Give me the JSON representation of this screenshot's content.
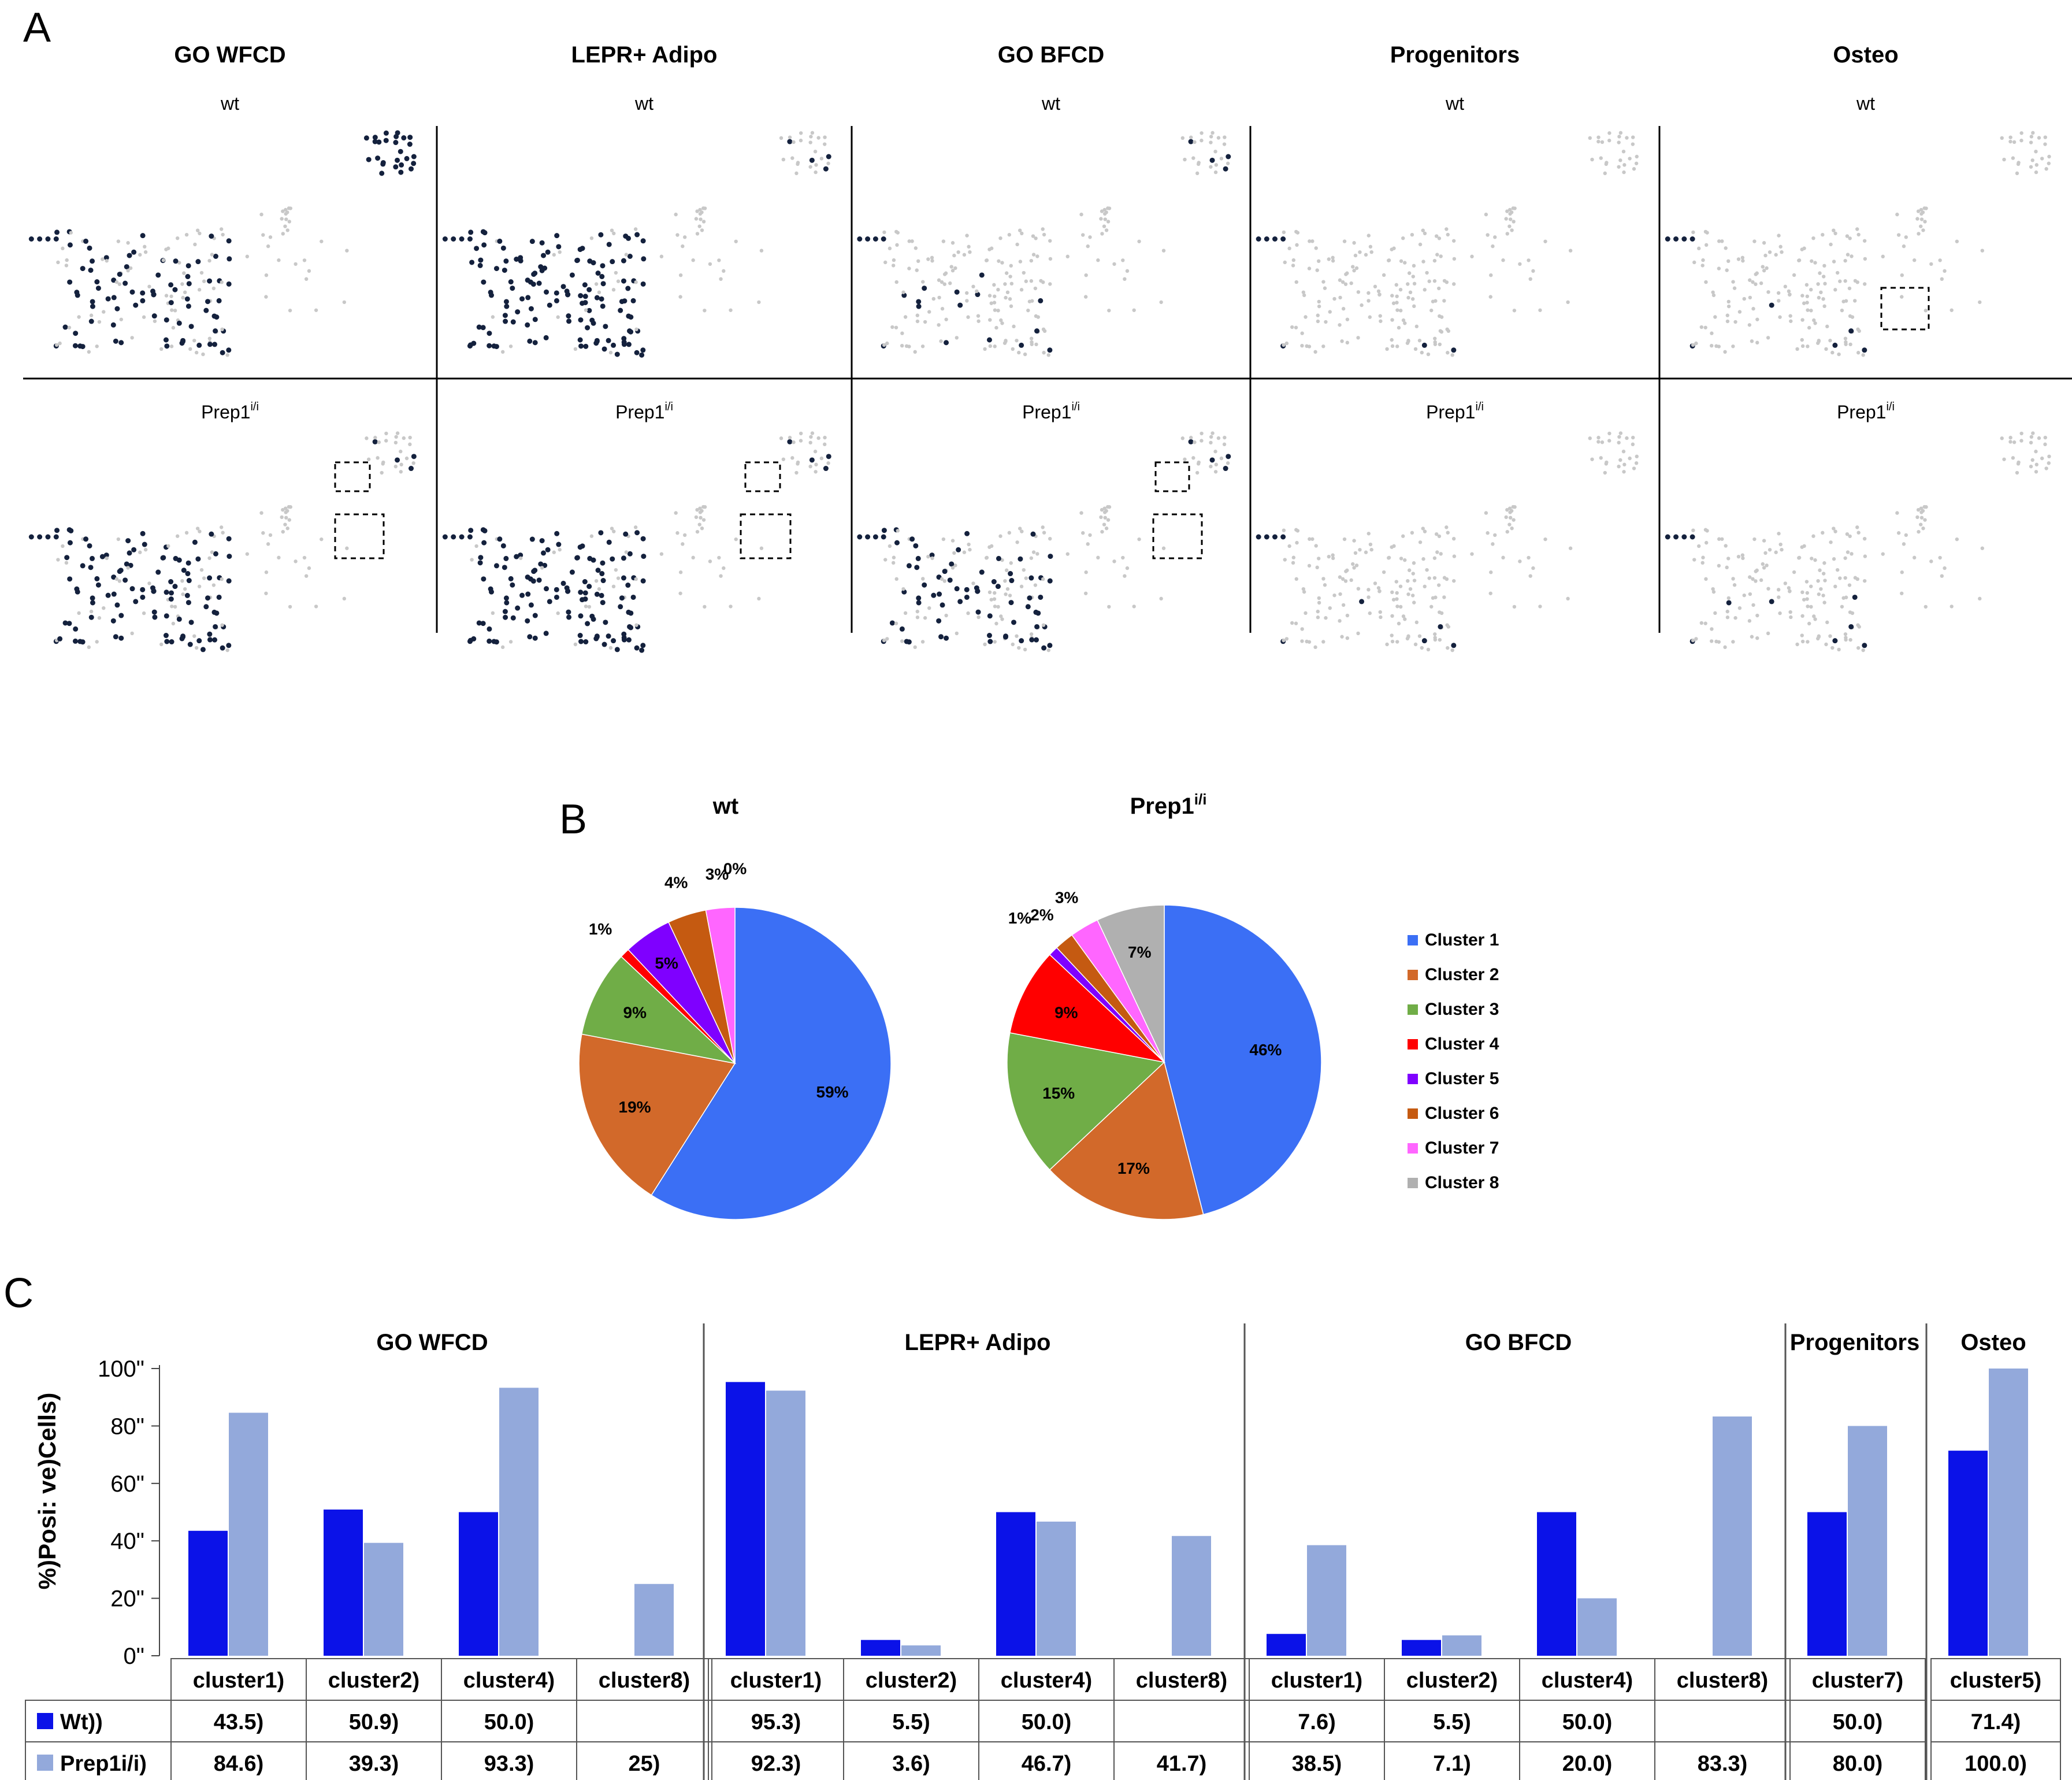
{
  "panel_labels": {
    "a": "A",
    "b": "B",
    "c": "C"
  },
  "colors": {
    "dot_dark": "#14213d",
    "dot_light": "#c8c8c8",
    "wt_bar": "#0b12e8",
    "prep_bar": "#93a9db",
    "axis": "#444444",
    "box": "#000000"
  },
  "panel_a": {
    "columns": [
      {
        "title": "GO WFCD",
        "top_label": "wt",
        "bottom_label": "Prep1",
        "bottom_sup": "i/i"
      },
      {
        "title": "LEPR+ Adipo",
        "top_label": "wt",
        "bottom_label": "Prep1",
        "bottom_sup": "i/i"
      },
      {
        "title": "GO BFCD",
        "top_label": "wt",
        "bottom_label": "Prep1",
        "bottom_sup": "i/i"
      },
      {
        "title": "Progenitors",
        "top_label": "wt",
        "bottom_label": "Prep1",
        "bottom_sup": "i/i"
      },
      {
        "title": "Osteo",
        "top_label": "wt",
        "bottom_label": "Prep1",
        "bottom_sup": "i/i"
      }
    ]
  },
  "chart_data": [
    {
      "type": "pie",
      "id": "pie-wt",
      "title": "wt",
      "labels": [
        "Cluster 1",
        "Cluster 2",
        "Cluster 3",
        "Cluster 4",
        "Cluster 5",
        "Cluster 6",
        "Cluster 7",
        "Cluster 8"
      ],
      "values": [
        59,
        19,
        9,
        1,
        5,
        4,
        3,
        0
      ],
      "value_labels": [
        "59%",
        "19%",
        "9%",
        "1%",
        "5%",
        "4%",
        "3%",
        "0%"
      ],
      "colors": [
        "#3b6ff5",
        "#d2692a",
        "#70ad47",
        "#ff0000",
        "#7f00ff",
        "#c55a11",
        "#ff66ff",
        "#b0b0b0"
      ]
    },
    {
      "type": "pie",
      "id": "pie-prep",
      "title": "Prep1",
      "title_sup": "i/i",
      "labels": [
        "Cluster 1",
        "Cluster 2",
        "Cluster 3",
        "Cluster 4",
        "Cluster 5",
        "Cluster 6",
        "Cluster 7",
        "Cluster 8"
      ],
      "values": [
        46,
        17,
        15,
        9,
        1,
        2,
        3,
        7
      ],
      "value_labels": [
        "46%",
        "17%",
        "15%",
        "9%",
        "1%",
        "2%",
        "3%",
        "7%"
      ],
      "colors": [
        "#3b6ff5",
        "#d2692a",
        "#70ad47",
        "#ff0000",
        "#7f00ff",
        "#c55a11",
        "#ff66ff",
        "#b0b0b0"
      ]
    },
    {
      "type": "bar",
      "id": "bar-positive-cells",
      "ylabel": "%)Posi: ve)Cells)",
      "ylim": [
        0,
        100
      ],
      "yticks": [
        "0\"",
        "20\"",
        "40\"",
        "60\"",
        "80\"",
        "100\""
      ],
      "groups": [
        {
          "title": "GO WFCD",
          "categories": [
            "cluster1)",
            "cluster2)",
            "cluster4)",
            "cluster8)"
          ],
          "wt": [
            43.5,
            50.9,
            50.0,
            null
          ],
          "prep": [
            84.6,
            39.3,
            93.3,
            25
          ],
          "wt_labels": [
            "43.5)",
            "50.9)",
            "50.0)",
            ""
          ],
          "prep_labels": [
            "84.6)",
            "39.3)",
            "93.3)",
            "25)"
          ]
        },
        {
          "title": "LEPR+ Adipo",
          "categories": [
            "cluster1)",
            "cluster2)",
            "cluster4)",
            "cluster8)"
          ],
          "wt": [
            95.3,
            5.5,
            50.0,
            null
          ],
          "prep": [
            92.3,
            3.6,
            46.7,
            41.7
          ],
          "wt_labels": [
            "95.3)",
            "5.5)",
            "50.0)",
            ""
          ],
          "prep_labels": [
            "92.3)",
            "3.6)",
            "46.7)",
            "41.7)"
          ]
        },
        {
          "title": "GO BFCD",
          "categories": [
            "cluster1)",
            "cluster2)",
            "cluster4)",
            "cluster8)"
          ],
          "wt": [
            7.6,
            5.5,
            50.0,
            null
          ],
          "prep": [
            38.5,
            7.1,
            20.0,
            83.3
          ],
          "wt_labels": [
            "7.6)",
            "5.5)",
            "50.0)",
            ""
          ],
          "prep_labels": [
            "38.5)",
            "7.1)",
            "20.0)",
            "83.3)"
          ]
        },
        {
          "title": "Progenitors",
          "categories": [
            "cluster7)"
          ],
          "wt": [
            50.0
          ],
          "prep": [
            80.0
          ],
          "wt_labels": [
            "50.0)"
          ],
          "prep_labels": [
            "80.0)"
          ]
        },
        {
          "title": "Osteo",
          "categories": [
            "cluster5)"
          ],
          "wt": [
            71.4
          ],
          "prep": [
            100.0
          ],
          "wt_labels": [
            "71.4)"
          ],
          "prep_labels": [
            "100.0)"
          ]
        }
      ],
      "legend": [
        {
          "name": "Wt))"
        },
        {
          "name": "Prep1i/i)"
        }
      ]
    }
  ]
}
